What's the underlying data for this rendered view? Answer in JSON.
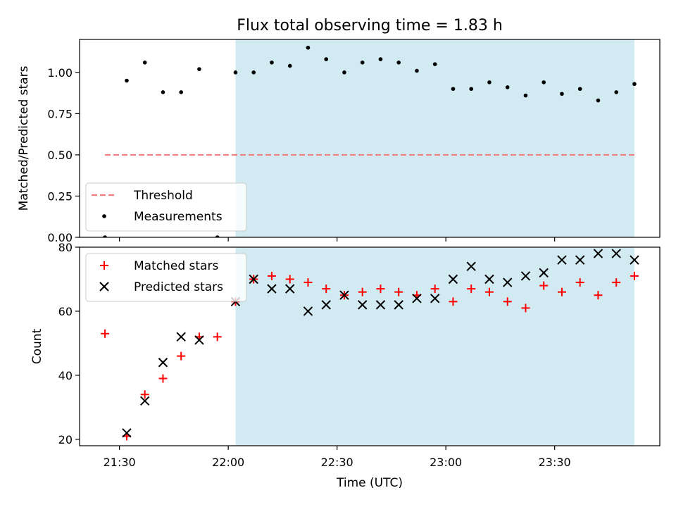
{
  "title": "Flux total observing time = 1.83 h",
  "colors": {
    "observing_span": "#add8e6",
    "threshold": "#f08080",
    "measurements": "#000000",
    "matched": "#ff0000",
    "predicted": "#000000"
  },
  "chart_data": [
    {
      "type": "scatter",
      "ylabel": "Matched/Predicted stars",
      "ylim": [
        0,
        1.2
      ],
      "yticks": [
        0.0,
        0.25,
        0.5,
        0.75,
        1.0
      ],
      "ytick_labels": [
        "0.00",
        "0.25",
        "0.50",
        "0.75",
        "1.00"
      ],
      "x_range": [
        "21:19",
        "23:59"
      ],
      "observing_span": [
        "22:02",
        "23:52"
      ],
      "threshold": {
        "name": "Threshold",
        "value": 0.5,
        "x_start": "21:26",
        "x_end": "23:52"
      },
      "legend": {
        "position": "lower-left",
        "entries": [
          "Threshold",
          "Measurements"
        ]
      },
      "series": [
        {
          "name": "Measurements",
          "x": [
            "21:26",
            "21:32",
            "21:37",
            "21:42",
            "21:47",
            "21:52",
            "21:57",
            "22:02",
            "22:07",
            "22:12",
            "22:17",
            "22:22",
            "22:27",
            "22:32",
            "22:37",
            "22:42",
            "22:47",
            "22:52",
            "22:57",
            "23:02",
            "23:07",
            "23:12",
            "23:17",
            "23:22",
            "23:27",
            "23:32",
            "23:37",
            "23:42",
            "23:47",
            "23:52"
          ],
          "y": [
            0.0,
            0.95,
            1.06,
            0.88,
            0.88,
            1.02,
            0.0,
            1.0,
            1.0,
            1.06,
            1.04,
            1.15,
            1.08,
            1.0,
            1.06,
            1.08,
            1.06,
            1.01,
            1.05,
            0.9,
            0.9,
            0.94,
            0.91,
            0.86,
            0.94,
            0.87,
            0.9,
            0.83,
            0.88,
            0.93
          ]
        }
      ]
    },
    {
      "type": "scatter",
      "xlabel": "Time (UTC)",
      "ylabel": "Count",
      "ylim": [
        18,
        80
      ],
      "yticks": [
        20,
        40,
        60,
        80
      ],
      "ytick_labels": [
        "20",
        "40",
        "60",
        "80"
      ],
      "x_range": [
        "21:19",
        "23:59"
      ],
      "xticks": [
        "21:30",
        "22:00",
        "22:30",
        "23:00",
        "23:30"
      ],
      "observing_span": [
        "22:02",
        "23:52"
      ],
      "legend": {
        "position": "top-left",
        "entries": [
          "Matched stars",
          "Predicted stars"
        ]
      },
      "series": [
        {
          "name": "Matched stars",
          "marker": "plus",
          "x": [
            "21:26",
            "21:32",
            "21:37",
            "21:42",
            "21:47",
            "21:52",
            "21:57",
            "22:02",
            "22:07",
            "22:12",
            "22:17",
            "22:22",
            "22:27",
            "22:32",
            "22:37",
            "22:42",
            "22:47",
            "22:52",
            "22:57",
            "23:02",
            "23:07",
            "23:12",
            "23:17",
            "23:22",
            "23:27",
            "23:32",
            "23:37",
            "23:42",
            "23:47",
            "23:52"
          ],
          "y": [
            53,
            21,
            34,
            39,
            46,
            52,
            52,
            63,
            70,
            71,
            70,
            69,
            67,
            65,
            66,
            67,
            66,
            65,
            67,
            63,
            67,
            66,
            63,
            61,
            68,
            66,
            69,
            65,
            69,
            71
          ]
        },
        {
          "name": "Predicted stars",
          "marker": "x",
          "x": [
            "21:32",
            "21:37",
            "21:42",
            "21:47",
            "21:52",
            "22:02",
            "22:07",
            "22:12",
            "22:17",
            "22:22",
            "22:27",
            "22:32",
            "22:37",
            "22:42",
            "22:47",
            "22:52",
            "22:57",
            "23:02",
            "23:07",
            "23:12",
            "23:17",
            "23:22",
            "23:27",
            "23:32",
            "23:37",
            "23:42",
            "23:47",
            "23:52"
          ],
          "y": [
            22,
            32,
            44,
            52,
            51,
            63,
            70,
            67,
            67,
            60,
            62,
            65,
            62,
            62,
            62,
            64,
            64,
            70,
            74,
            70,
            69,
            71,
            72,
            76,
            76,
            78,
            78,
            76
          ]
        }
      ]
    }
  ]
}
